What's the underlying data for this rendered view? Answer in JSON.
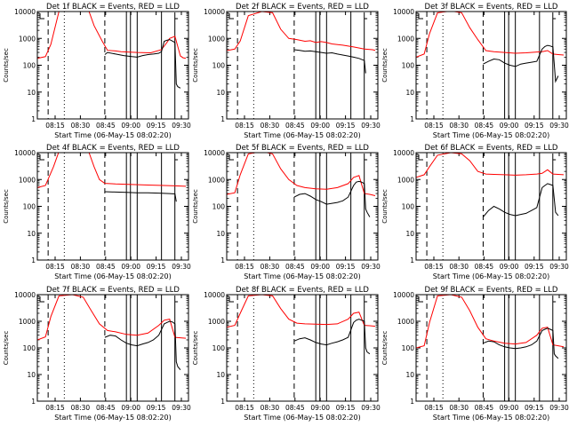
{
  "figure": {
    "ylabel": "Counts/sec",
    "xlabel": "Start Time (06-May-15 08:02:20)",
    "yticks": [
      "1",
      "10",
      "100",
      "1000",
      "10000"
    ],
    "xticks": [
      "08:15",
      "08:30",
      "08:45",
      "09:00",
      "09:15",
      "09:30"
    ],
    "colors": {
      "events": "#000000",
      "lld": "#ff0000",
      "axes": "#000000",
      "background": "#ffffff"
    }
  },
  "chart_data": [
    {
      "type": "line",
      "title": "Det 1f BLACK = Events, RED = LLD",
      "yscale": "log",
      "ylim": [
        1,
        10000
      ],
      "xlim_min": [
        7,
        35
      ],
      "markers": {
        "dashed": [
          11,
          32
        ],
        "dotted": [
          17
        ],
        "solid": [
          40,
          41.5,
          44,
          53
        ],
        "bracket_min": 30
      },
      "series": [
        {
          "name": "LLD",
          "color": "#ff0000",
          "x": [
            7,
            10,
            12,
            15,
            20,
            26,
            28,
            31,
            33,
            36,
            38,
            44,
            49,
            53,
            55,
            56,
            58,
            60,
            61,
            62
          ],
          "y": [
            180,
            210,
            600,
            10000,
            13000,
            11000,
            3000,
            800,
            360,
            340,
            320,
            300,
            290,
            380,
            700,
            1000,
            1200,
            220,
            190,
            180
          ]
        },
        {
          "name": "Events",
          "color": "#000000",
          "x": [
            32,
            33,
            36,
            39,
            42,
            44,
            46,
            48,
            50,
            52,
            53,
            54,
            55,
            56,
            57,
            58,
            58.5,
            59,
            60
          ],
          "y": [
            250,
            300,
            260,
            230,
            210,
            200,
            230,
            250,
            260,
            280,
            320,
            780,
            850,
            900,
            800,
            700,
            20,
            16,
            14
          ]
        }
      ]
    },
    {
      "type": "line",
      "title": "Det 2f BLACK = Events, RED = LLD",
      "yscale": "log",
      "ylim": [
        1,
        10000
      ],
      "xlim_min": [
        7,
        35
      ],
      "markers": {
        "dashed": [
          11,
          32
        ],
        "dotted": [
          17
        ],
        "solid": [
          40,
          41.5,
          44,
          53
        ],
        "bracket_min": 30
      },
      "series": [
        {
          "name": "LLD",
          "color": "#ff0000",
          "x": [
            7,
            10,
            12,
            15,
            20,
            24,
            27,
            30,
            33,
            36,
            38,
            40,
            42,
            44,
            46,
            50,
            54,
            58,
            61,
            62
          ],
          "y": [
            350,
            400,
            800,
            7000,
            10000,
            9000,
            2200,
            1000,
            900,
            780,
            820,
            700,
            760,
            700,
            620,
            560,
            480,
            400,
            380,
            360
          ]
        },
        {
          "name": "Events",
          "color": "#000000",
          "x": [
            32,
            34,
            36,
            38,
            40,
            42,
            44,
            46,
            48,
            50,
            52,
            54,
            56,
            58,
            58.5
          ],
          "y": [
            380,
            360,
            330,
            340,
            320,
            300,
            280,
            290,
            260,
            240,
            220,
            200,
            180,
            150,
            50
          ]
        }
      ]
    },
    {
      "type": "line",
      "title": "Det 3f BLACK = Events, RED = LLD",
      "yscale": "log",
      "ylim": [
        1,
        10000
      ],
      "xlim_min": [
        7,
        35
      ],
      "markers": {
        "dashed": [
          11,
          32
        ],
        "dotted": [
          17
        ],
        "solid": [
          40,
          41.5,
          44,
          53
        ],
        "bracket_min": 30
      },
      "series": [
        {
          "name": "LLD",
          "color": "#ff0000",
          "x": [
            7,
            10,
            12,
            15,
            20,
            24,
            27,
            30,
            33,
            36,
            40,
            44,
            48,
            52,
            54,
            56,
            58,
            60,
            62
          ],
          "y": [
            200,
            260,
            1500,
            9000,
            10500,
            9000,
            2500,
            900,
            350,
            320,
            300,
            280,
            290,
            310,
            320,
            350,
            260,
            250,
            240
          ]
        },
        {
          "name": "Events",
          "color": "#000000",
          "x": [
            32,
            34,
            36,
            38,
            40,
            42,
            44,
            46,
            48,
            50,
            52,
            54,
            55,
            56,
            57,
            58,
            59,
            60
          ],
          "y": [
            110,
            140,
            170,
            160,
            120,
            100,
            90,
            110,
            120,
            130,
            140,
            400,
            500,
            550,
            520,
            480,
            25,
            40
          ]
        }
      ]
    },
    {
      "type": "line",
      "title": "Det 4f BLACK = Events, RED = LLD",
      "yscale": "log",
      "ylim": [
        1,
        10000
      ],
      "xlim_min": [
        7,
        35
      ],
      "markers": {
        "dashed": [
          11,
          32
        ],
        "dotted": [
          17
        ],
        "solid": [
          40,
          41.5,
          44,
          53
        ],
        "bracket_min": 30
      },
      "series": [
        {
          "name": "LLD",
          "color": "#ff0000",
          "x": [
            7,
            10,
            13,
            15,
            20,
            26,
            28,
            30,
            32,
            36,
            42,
            48,
            54,
            58,
            62
          ],
          "y": [
            500,
            600,
            3000,
            11000,
            13000,
            11000,
            3000,
            1000,
            720,
            680,
            650,
            620,
            600,
            580,
            560
          ]
        },
        {
          "name": "Events",
          "color": "#000000",
          "x": [
            32,
            36,
            40,
            44,
            48,
            52,
            56,
            58,
            58.5
          ],
          "y": [
            350,
            340,
            330,
            320,
            320,
            310,
            300,
            290,
            150
          ]
        }
      ]
    },
    {
      "type": "line",
      "title": "Det 5f BLACK = Events, RED = LLD",
      "yscale": "log",
      "ylim": [
        1,
        10000
      ],
      "xlim_min": [
        7,
        35
      ],
      "markers": {
        "dashed": [
          11,
          32
        ],
        "dotted": [
          17
        ],
        "solid": [
          40,
          41.5,
          44,
          53
        ],
        "bracket_min": 30
      },
      "series": [
        {
          "name": "LLD",
          "color": "#ff0000",
          "x": [
            7,
            10,
            12,
            15,
            20,
            24,
            27,
            30,
            33,
            36,
            40,
            44,
            48,
            52,
            54,
            56,
            58,
            60,
            62
          ],
          "y": [
            280,
            320,
            1500,
            9000,
            11000,
            9000,
            2500,
            1000,
            600,
            500,
            450,
            430,
            500,
            700,
            1200,
            1400,
            300,
            280,
            250
          ]
        },
        {
          "name": "Events",
          "color": "#000000",
          "x": [
            32,
            34,
            36,
            38,
            40,
            42,
            44,
            46,
            48,
            50,
            52,
            54,
            55,
            56,
            57,
            58,
            58.5,
            59,
            60
          ],
          "y": [
            220,
            280,
            300,
            240,
            180,
            150,
            120,
            130,
            140,
            160,
            220,
            600,
            800,
            850,
            800,
            700,
            80,
            60,
            40
          ]
        }
      ]
    },
    {
      "type": "line",
      "title": "Det 6f BLACK = Events, RED = LLD",
      "yscale": "log",
      "ylim": [
        1,
        10000
      ],
      "xlim_min": [
        7,
        35
      ],
      "markers": {
        "dashed": [
          11,
          32
        ],
        "dotted": [
          17
        ],
        "solid": [
          40,
          41.5,
          44,
          53
        ],
        "bracket_min": 30
      },
      "series": [
        {
          "name": "LLD",
          "color": "#ff0000",
          "x": [
            7,
            10,
            12,
            15,
            20,
            24,
            27,
            30,
            33,
            36,
            40,
            44,
            48,
            52,
            54,
            56,
            58,
            60,
            62
          ],
          "y": [
            1200,
            1500,
            3000,
            8000,
            10000,
            9000,
            5000,
            2000,
            1600,
            1550,
            1500,
            1450,
            1500,
            1600,
            1700,
            2300,
            1600,
            1550,
            1500
          ]
        },
        {
          "name": "Events",
          "color": "#000000",
          "x": [
            32,
            34,
            36,
            38,
            40,
            42,
            44,
            46,
            48,
            50,
            52,
            54,
            55,
            56,
            57,
            58,
            59,
            60
          ],
          "y": [
            40,
            70,
            100,
            80,
            60,
            50,
            45,
            50,
            55,
            70,
            90,
            500,
            600,
            700,
            650,
            600,
            60,
            45
          ]
        }
      ]
    },
    {
      "type": "line",
      "title": "Det 7f BLACK = Events, RED = LLD",
      "yscale": "log",
      "ylim": [
        1,
        10000
      ],
      "xlim_min": [
        7,
        35
      ],
      "markers": {
        "dashed": [
          11,
          32
        ],
        "dotted": [
          17
        ],
        "solid": [
          40,
          41.5,
          44,
          53
        ],
        "bracket_min": 30
      },
      "series": [
        {
          "name": "LLD",
          "color": "#ff0000",
          "x": [
            7,
            10,
            12,
            15,
            20,
            24,
            27,
            30,
            33,
            36,
            40,
            44,
            48,
            52,
            54,
            56,
            58,
            60,
            62
          ],
          "y": [
            200,
            260,
            1500,
            9000,
            10000,
            8000,
            2500,
            800,
            450,
            400,
            320,
            300,
            360,
            700,
            1100,
            1200,
            250,
            240,
            230
          ]
        },
        {
          "name": "Events",
          "color": "#000000",
          "x": [
            32,
            34,
            36,
            38,
            40,
            42,
            44,
            46,
            48,
            50,
            52,
            54,
            55,
            56,
            57,
            58,
            58.5,
            59,
            60
          ],
          "y": [
            250,
            300,
            280,
            200,
            150,
            130,
            120,
            140,
            160,
            200,
            300,
            800,
            900,
            1000,
            950,
            800,
            30,
            20,
            15
          ]
        }
      ]
    },
    {
      "type": "line",
      "title": "Det 8f BLACK = Events, RED = LLD",
      "yscale": "log",
      "ylim": [
        1,
        10000
      ],
      "xlim_min": [
        7,
        35
      ],
      "markers": {
        "dashed": [
          11,
          32
        ],
        "dotted": [
          17
        ],
        "solid": [
          40,
          41.5,
          44,
          53
        ],
        "bracket_min": 30
      },
      "series": [
        {
          "name": "LLD",
          "color": "#ff0000",
          "x": [
            7,
            10,
            12,
            15,
            20,
            24,
            27,
            30,
            33,
            36,
            40,
            44,
            48,
            52,
            54,
            56,
            58,
            60,
            62
          ],
          "y": [
            600,
            700,
            2000,
            9000,
            10000,
            9000,
            3000,
            1200,
            850,
            800,
            780,
            760,
            800,
            1200,
            2000,
            2200,
            700,
            680,
            650
          ]
        },
        {
          "name": "Events",
          "color": "#000000",
          "x": [
            32,
            34,
            36,
            38,
            40,
            42,
            44,
            46,
            48,
            50,
            52,
            54,
            55,
            56,
            57,
            58,
            58.5,
            59,
            60
          ],
          "y": [
            180,
            220,
            240,
            200,
            160,
            140,
            130,
            150,
            170,
            200,
            250,
            900,
            1100,
            1200,
            1100,
            1000,
            100,
            70,
            60
          ]
        }
      ]
    },
    {
      "type": "line",
      "title": "Det 9f BLACK = Events, RED = LLD",
      "yscale": "log",
      "ylim": [
        1,
        10000
      ],
      "xlim_min": [
        7,
        35
      ],
      "markers": {
        "dashed": [
          11,
          32
        ],
        "dotted": [
          17
        ],
        "solid": [
          40,
          41.5,
          44,
          53
        ],
        "bracket_min": 30
      },
      "series": [
        {
          "name": "LLD",
          "color": "#ff0000",
          "x": [
            7,
            10,
            12,
            15,
            20,
            24,
            27,
            30,
            33,
            36,
            40,
            44,
            48,
            52,
            54,
            56,
            58,
            60,
            62
          ],
          "y": [
            100,
            120,
            900,
            9000,
            10000,
            8000,
            2500,
            600,
            220,
            180,
            150,
            140,
            160,
            300,
            550,
            600,
            130,
            120,
            110
          ]
        },
        {
          "name": "Events",
          "color": "#000000",
          "x": [
            32,
            34,
            36,
            38,
            40,
            42,
            44,
            46,
            48,
            50,
            52,
            54,
            55,
            56,
            57,
            58,
            58.5,
            59,
            60
          ],
          "y": [
            150,
            180,
            170,
            130,
            110,
            100,
            95,
            100,
            110,
            130,
            180,
            450,
            500,
            550,
            500,
            450,
            60,
            50,
            40
          ]
        }
      ]
    }
  ]
}
